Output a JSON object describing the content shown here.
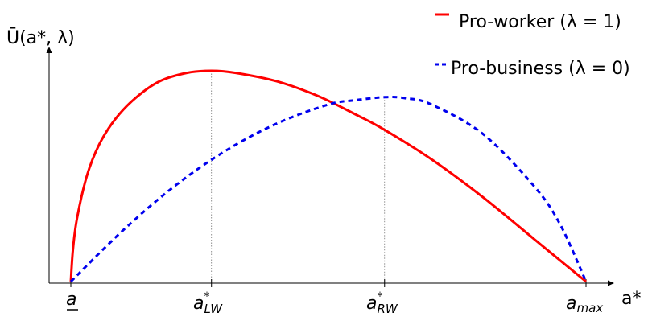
{
  "chart_data": {
    "type": "line",
    "ylabel": "Ū(a*, λ)",
    "xlabel": "a*",
    "x_ticks": [
      "a",
      "a*LW",
      "a*RW",
      "amax"
    ],
    "x_domain": [
      0,
      1
    ],
    "y_domain": [
      0,
      1
    ],
    "grid": false,
    "legend_position": "top-right",
    "series": [
      {
        "name": "Pro-worker (λ = 1)",
        "color": "#ff0000",
        "style": "solid",
        "points": [
          [
            0,
            0
          ],
          [
            0.004,
            0.15
          ],
          [
            0.012,
            0.3
          ],
          [
            0.031,
            0.5
          ],
          [
            0.055,
            0.65
          ],
          [
            0.086,
            0.77
          ],
          [
            0.125,
            0.87
          ],
          [
            0.172,
            0.95
          ],
          [
            0.225,
            0.99
          ],
          [
            0.273,
            1.0
          ],
          [
            0.32,
            0.99
          ],
          [
            0.4,
            0.95
          ],
          [
            0.48,
            0.88
          ],
          [
            0.555,
            0.79
          ],
          [
            0.609,
            0.72
          ],
          [
            0.7,
            0.58
          ],
          [
            0.8,
            0.4
          ],
          [
            0.9,
            0.2
          ],
          [
            1.0,
            0.0
          ]
        ]
      },
      {
        "name": "Pro-business (λ = 0)",
        "color": "#0000ee",
        "style": "dashed",
        "points": [
          [
            0,
            0
          ],
          [
            0.1,
            0.24
          ],
          [
            0.2,
            0.45
          ],
          [
            0.3,
            0.62
          ],
          [
            0.4,
            0.75
          ],
          [
            0.5,
            0.84
          ],
          [
            0.55,
            0.86
          ],
          [
            0.609,
            0.875
          ],
          [
            0.65,
            0.87
          ],
          [
            0.7,
            0.84
          ],
          [
            0.8,
            0.7
          ],
          [
            0.9,
            0.45
          ],
          [
            0.95,
            0.27
          ],
          [
            1.0,
            0.0
          ]
        ]
      }
    ],
    "reference_lines_x": [
      0.273,
      0.609
    ]
  }
}
